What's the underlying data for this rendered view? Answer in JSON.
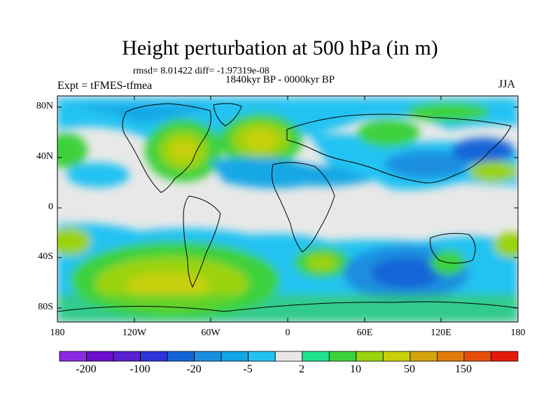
{
  "title": "Height perturbation at 500 hPa (in m)",
  "stats": "rmsd= 8.01422 diff= -1.97319e-08",
  "period": "1840kyr BP - 0000kyr BP",
  "experiment": "Expt = tFMES-tfmea",
  "season": "JJA",
  "lat_labels": [
    "80N",
    "40N",
    "0",
    "40S",
    "80S"
  ],
  "lon_labels": [
    "180",
    "120W",
    "60W",
    "0",
    "60E",
    "120E",
    "180"
  ],
  "colorbar": {
    "colors": [
      "#8a2be2",
      "#6a0dcd",
      "#5a1fd0",
      "#2f33d9",
      "#1565d8",
      "#1a8fe0",
      "#12a7e6",
      "#22c3f2",
      "#e8e8e8",
      "#1fe38c",
      "#3dd13d",
      "#9ad30f",
      "#c9d00c",
      "#d4a40c",
      "#e07a0a",
      "#e64f0a",
      "#e61a0a"
    ],
    "labels": [
      "-200",
      "-100",
      "-20",
      "-5",
      "2",
      "10",
      "50",
      "150"
    ]
  }
}
